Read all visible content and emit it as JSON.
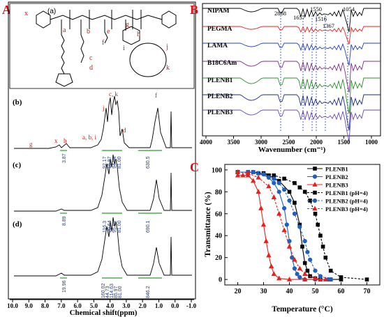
{
  "panels": {
    "A": "A",
    "B": "B",
    "C": "C"
  },
  "structure": {
    "sublabel": "(a)",
    "letters": [
      "x",
      "a",
      "b",
      "c",
      "d",
      "e",
      "f",
      "g",
      "h",
      "i",
      "j",
      "k"
    ]
  },
  "nmr": {
    "xlabel": "Chemical shift(ppm)",
    "xticks": [
      "10.0",
      "9.0",
      "8.0",
      "7.0",
      "6.0",
      "5.0",
      "4.0",
      "3.0",
      "2.0",
      "1.0",
      "0.0",
      "-1.0"
    ],
    "panel_b": {
      "sublabel": "(b)",
      "peak_labels": [
        "g",
        "x",
        "h",
        "a, b, i",
        "c, k",
        "j",
        "d",
        "f"
      ],
      "integrals": [
        "3.87",
        "92.17",
        "16.97",
        "94.94",
        "81.00",
        "630.5"
      ]
    },
    "panel_c": {
      "sublabel": "(c)",
      "integrals": [
        "8.89",
        "116.3",
        "20.64",
        "95.92",
        "81.00",
        "690.1"
      ]
    },
    "panel_d": {
      "sublabel": "(d)",
      "integrals": [
        "19.96",
        "160.02",
        "44.73",
        "114.63",
        "85.97",
        "81.00",
        "846.2"
      ]
    }
  },
  "ftir": {
    "xlabel": "Wavenumber (cm⁻¹)",
    "xticks": [
      "4000",
      "3500",
      "3000",
      "2500",
      "2000",
      "1500",
      "1000"
    ],
    "band_labels": [
      "2868",
      "1657",
      "1550",
      "1516",
      "1367",
      "1054"
    ],
    "series": [
      {
        "name": "NIPAM",
        "color": "#000000"
      },
      {
        "name": "PEGMA",
        "color": "#e8201a"
      },
      {
        "name": "LAMA",
        "color": "#1f3fbf"
      },
      {
        "name": "B18C6Am",
        "color": "#7a2d8a"
      },
      {
        "name": "PLENB1",
        "color": "#2e8b2e"
      },
      {
        "name": "PLENB2",
        "color": "#1a2a8a"
      },
      {
        "name": "PLENB3",
        "color": "#6a4ab0"
      }
    ]
  },
  "chart_data": {
    "type": "line",
    "xlabel": "Temperature (°C)",
    "ylabel": "Transmittance (%)",
    "xlim": [
      15,
      75
    ],
    "ylim": [
      -5,
      105
    ],
    "xticks": [
      20,
      30,
      40,
      50,
      60,
      70
    ],
    "yticks": [
      0,
      20,
      40,
      60,
      80,
      100
    ],
    "legend_position": "top-right",
    "series": [
      {
        "name": "PLENB1",
        "color": "#000000",
        "style": "solid",
        "marker": "square",
        "x": [
          20,
          24,
          28,
          32,
          36,
          40,
          42,
          44,
          45,
          46,
          47,
          48,
          50,
          52,
          56,
          60
        ],
        "y": [
          98,
          98,
          97,
          95,
          90,
          80,
          70,
          50,
          30,
          15,
          8,
          3,
          1,
          0,
          0,
          0
        ]
      },
      {
        "name": "PLENB2",
        "color": "#1f5fbf",
        "style": "solid",
        "marker": "circle",
        "x": [
          20,
          24,
          28,
          32,
          34,
          36,
          38,
          39,
          40,
          41,
          42,
          43,
          44,
          46,
          50,
          55
        ],
        "y": [
          98,
          98,
          97,
          93,
          88,
          80,
          65,
          50,
          35,
          20,
          10,
          5,
          2,
          0,
          0,
          0
        ]
      },
      {
        "name": "PLENB3",
        "color": "#e8201a",
        "style": "solid",
        "marker": "triangle",
        "x": [
          20,
          22,
          24,
          26,
          28,
          29,
          30,
          31,
          32,
          33,
          34,
          36,
          40,
          46,
          52
        ],
        "y": [
          95,
          95,
          95,
          90,
          80,
          65,
          50,
          35,
          22,
          12,
          5,
          1,
          0,
          0,
          0
        ]
      },
      {
        "name": "PLENB1 (pH=4)",
        "color": "#000000",
        "style": "dashed",
        "marker": "square",
        "x": [
          20,
          26,
          30,
          34,
          38,
          42,
          44,
          46,
          48,
          50,
          51,
          52,
          53,
          54,
          56,
          60,
          70
        ],
        "y": [
          98,
          98,
          97,
          95,
          92,
          88,
          84,
          80,
          72,
          60,
          50,
          40,
          30,
          20,
          8,
          2,
          0
        ]
      },
      {
        "name": "PLENB2 (pH=4)",
        "color": "#1f5fbf",
        "style": "dashed",
        "marker": "circle",
        "x": [
          20,
          26,
          30,
          34,
          36,
          38,
          40,
          42,
          44,
          46,
          47,
          48,
          50,
          52,
          56
        ],
        "y": [
          98,
          98,
          96,
          92,
          88,
          82,
          72,
          60,
          48,
          35,
          25,
          18,
          8,
          3,
          0
        ]
      },
      {
        "name": "PLENB3 (pH=4)",
        "color": "#e8201a",
        "style": "dashed",
        "marker": "triangle",
        "x": [
          20,
          24,
          28,
          32,
          34,
          36,
          38,
          40,
          42,
          44,
          46,
          50,
          54
        ],
        "y": [
          98,
          97,
          93,
          85,
          75,
          60,
          45,
          30,
          18,
          10,
          5,
          1,
          0
        ]
      }
    ]
  }
}
